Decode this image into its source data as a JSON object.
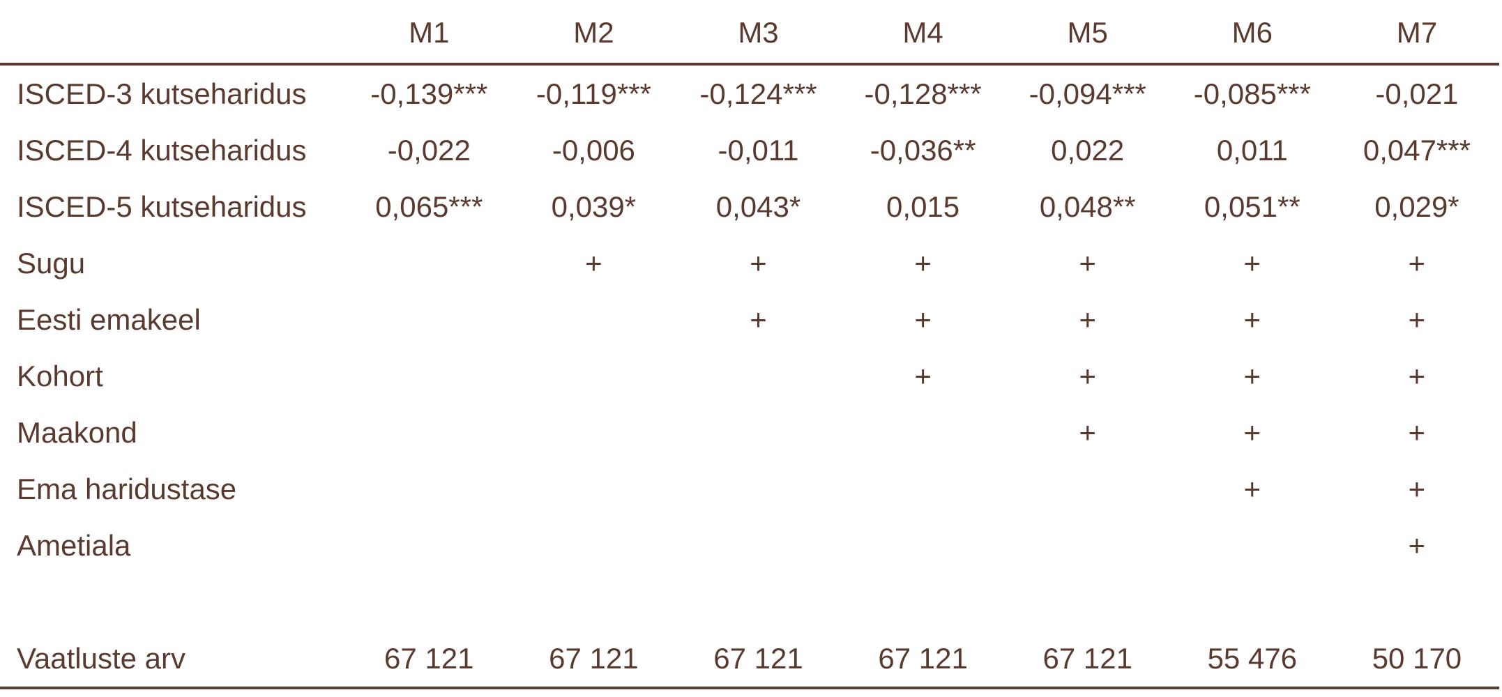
{
  "table": {
    "columns": [
      "",
      "M1",
      "M2",
      "M3",
      "M4",
      "M5",
      "M6",
      "M7"
    ],
    "rows": [
      {
        "label": "ISCED-3 kutseharidus",
        "cells": [
          "-0,139***",
          "-0,119***",
          "-0,124***",
          "-0,128***",
          "-0,094***",
          "-0,085***",
          "-0,021"
        ]
      },
      {
        "label": "ISCED-4 kutseharidus",
        "cells": [
          "-0,022",
          "-0,006",
          "-0,011",
          "-0,036**",
          "0,022",
          "0,011",
          "0,047***"
        ]
      },
      {
        "label": "ISCED-5 kutseharidus",
        "cells": [
          "0,065***",
          "0,039*",
          "0,043*",
          "0,015",
          "0,048**",
          "0,051**",
          "0,029*"
        ]
      },
      {
        "label": "Sugu",
        "cells": [
          "",
          "+",
          "+",
          "+",
          "+",
          "+",
          "+"
        ]
      },
      {
        "label": "Eesti emakeel",
        "cells": [
          "",
          "",
          "+",
          "+",
          "+",
          "+",
          "+"
        ]
      },
      {
        "label": "Kohort",
        "cells": [
          "",
          "",
          "",
          "+",
          "+",
          "+",
          "+"
        ]
      },
      {
        "label": "Maakond",
        "cells": [
          "",
          "",
          "",
          "",
          "+",
          "+",
          "+"
        ]
      },
      {
        "label": "Ema haridustase",
        "cells": [
          "",
          "",
          "",
          "",
          "",
          "+",
          "+"
        ]
      },
      {
        "label": "Ametiala",
        "cells": [
          "",
          "",
          "",
          "",
          "",
          "",
          "+"
        ]
      }
    ],
    "total": {
      "label": "Vaatluste arv",
      "cells": [
        "67 121",
        "67 121",
        "67 121",
        "67 121",
        "67 121",
        "55 476",
        "50 170"
      ]
    }
  }
}
